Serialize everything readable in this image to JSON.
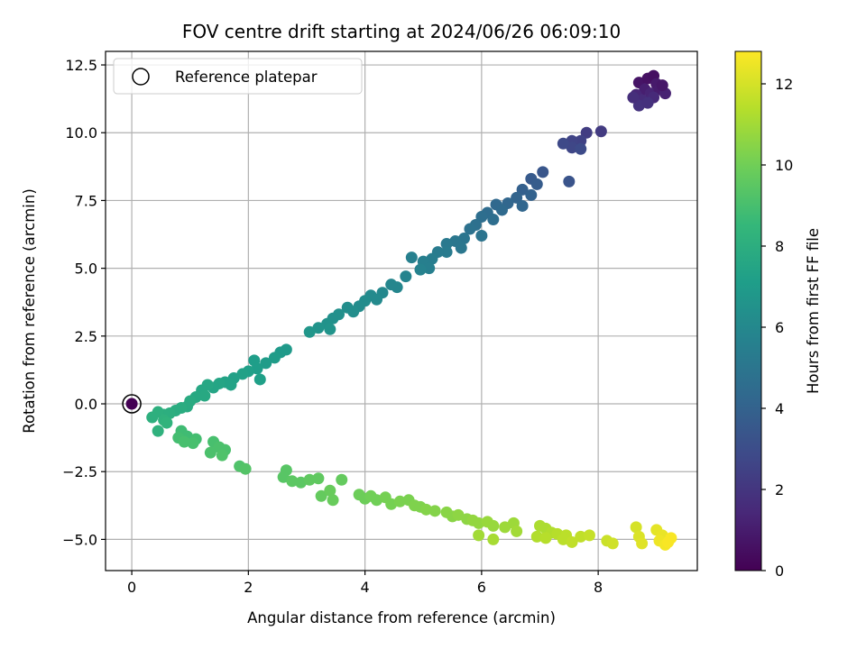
{
  "chart_data": {
    "type": "scatter",
    "title": "FOV centre drift starting at 2024/06/26 06:09:10",
    "xlabel": "Angular distance from reference (arcmin)",
    "ylabel": "Rotation from reference (arcmin)",
    "xlim": [
      -0.45,
      9.7
    ],
    "ylim": [
      -6.15,
      13.0
    ],
    "xticks": [
      0,
      2,
      4,
      6,
      8
    ],
    "yticks": [
      -5.0,
      -2.5,
      0.0,
      2.5,
      5.0,
      7.5,
      10.0,
      12.5
    ],
    "xtick_labels": [
      "0",
      "2",
      "4",
      "6",
      "8"
    ],
    "ytick_labels": [
      "−5.0",
      "−2.5",
      "0.0",
      "2.5",
      "5.0",
      "7.5",
      "10.0",
      "12.5"
    ],
    "grid": true,
    "legend": {
      "position": "top-left",
      "entries": [
        "Reference platepar"
      ]
    },
    "reference_point": {
      "x": 0,
      "y": 0,
      "hours": 0
    },
    "colorbar": {
      "label": "Hours from first FF file",
      "range": [
        0,
        12.8
      ],
      "ticks": [
        0,
        2,
        4,
        6,
        8,
        10,
        12
      ],
      "tick_labels": [
        "0",
        "2",
        "4",
        "6",
        "8",
        "10",
        "12"
      ],
      "colormap": "viridis",
      "colors": [
        "#440154",
        "#482878",
        "#3e4a89",
        "#31688e",
        "#26828e",
        "#1f9e89",
        "#35b779",
        "#6ece58",
        "#b5de2b",
        "#fde725"
      ]
    },
    "series": [
      {
        "points": [
          [
            8.7,
            11.85,
            0.7
          ],
          [
            8.85,
            12.0,
            0.6
          ],
          [
            8.95,
            12.1,
            0.5
          ],
          [
            9.0,
            11.8,
            0.9
          ],
          [
            8.8,
            11.6,
            1.1
          ],
          [
            8.65,
            11.4,
            1.4
          ],
          [
            8.9,
            11.45,
            1.3
          ],
          [
            9.05,
            11.6,
            1.0
          ],
          [
            9.15,
            11.45,
            1.2
          ],
          [
            8.75,
            11.2,
            1.6
          ],
          [
            8.95,
            11.3,
            1.5
          ],
          [
            8.7,
            11.0,
            1.9
          ],
          [
            8.85,
            11.1,
            1.8
          ],
          [
            8.6,
            11.3,
            1.7
          ],
          [
            9.1,
            11.75,
            0.8
          ],
          [
            8.05,
            10.05,
            2.2
          ],
          [
            7.8,
            10.0,
            2.3
          ],
          [
            7.7,
            9.7,
            2.5
          ],
          [
            7.55,
            9.7,
            2.6
          ],
          [
            7.55,
            9.45,
            2.7
          ],
          [
            7.4,
            9.6,
            2.8
          ],
          [
            7.7,
            9.4,
            2.9
          ],
          [
            7.5,
            8.2,
            3.3
          ],
          [
            7.05,
            8.55,
            3.4
          ],
          [
            6.85,
            8.3,
            3.6
          ],
          [
            6.95,
            8.1,
            3.7
          ],
          [
            6.7,
            7.9,
            3.9
          ],
          [
            6.85,
            7.7,
            4.0
          ],
          [
            6.6,
            7.6,
            4.1
          ],
          [
            6.45,
            7.4,
            4.2
          ],
          [
            6.7,
            7.3,
            4.2
          ],
          [
            6.25,
            7.35,
            4.3
          ],
          [
            6.35,
            7.15,
            4.4
          ],
          [
            6.1,
            7.05,
            4.5
          ],
          [
            6.2,
            6.8,
            4.6
          ],
          [
            6.0,
            6.9,
            4.6
          ],
          [
            5.9,
            6.6,
            4.7
          ],
          [
            5.8,
            6.45,
            4.8
          ],
          [
            6.0,
            6.2,
            4.9
          ],
          [
            5.7,
            6.1,
            5.0
          ],
          [
            5.55,
            6.0,
            5.1
          ],
          [
            5.65,
            5.75,
            5.1
          ],
          [
            5.4,
            5.9,
            5.2
          ],
          [
            5.4,
            5.6,
            5.3
          ],
          [
            5.25,
            5.6,
            5.3
          ],
          [
            5.15,
            5.35,
            5.4
          ],
          [
            5.0,
            5.25,
            5.5
          ],
          [
            5.1,
            5.0,
            5.5
          ],
          [
            4.8,
            5.4,
            5.6
          ],
          [
            4.95,
            4.95,
            5.7
          ],
          [
            4.7,
            4.7,
            5.8
          ],
          [
            4.55,
            4.3,
            5.9
          ],
          [
            4.45,
            4.4,
            5.9
          ],
          [
            4.3,
            4.1,
            6.0
          ],
          [
            4.1,
            4.0,
            6.1
          ],
          [
            4.2,
            3.85,
            6.1
          ],
          [
            4.0,
            3.8,
            6.2
          ],
          [
            3.9,
            3.6,
            6.2
          ],
          [
            3.8,
            3.4,
            6.3
          ],
          [
            3.7,
            3.55,
            6.3
          ],
          [
            3.55,
            3.3,
            6.4
          ],
          [
            3.45,
            3.15,
            6.4
          ],
          [
            3.35,
            2.95,
            6.5
          ],
          [
            3.4,
            2.75,
            6.6
          ],
          [
            3.2,
            2.8,
            6.6
          ],
          [
            3.05,
            2.65,
            6.7
          ],
          [
            2.65,
            2.0,
            6.9
          ],
          [
            2.55,
            1.9,
            6.9
          ],
          [
            2.45,
            1.7,
            7.0
          ],
          [
            2.3,
            1.5,
            7.0
          ],
          [
            2.1,
            1.6,
            7.1
          ],
          [
            2.15,
            1.3,
            7.1
          ],
          [
            2.0,
            1.2,
            7.2
          ],
          [
            2.2,
            0.9,
            7.2
          ],
          [
            1.9,
            1.1,
            7.3
          ],
          [
            1.75,
            0.95,
            7.3
          ],
          [
            1.6,
            0.8,
            7.4
          ],
          [
            1.7,
            0.7,
            7.4
          ],
          [
            1.5,
            0.75,
            7.5
          ],
          [
            1.4,
            0.6,
            7.5
          ],
          [
            1.3,
            0.7,
            7.6
          ],
          [
            1.2,
            0.5,
            7.6
          ],
          [
            1.25,
            0.3,
            7.7
          ],
          [
            1.1,
            0.25,
            7.7
          ],
          [
            1.0,
            0.1,
            7.8
          ],
          [
            0.95,
            -0.1,
            7.8
          ],
          [
            0.85,
            -0.15,
            7.9
          ],
          [
            0.75,
            -0.25,
            7.9
          ],
          [
            0.65,
            -0.35,
            8.0
          ],
          [
            0.55,
            -0.4,
            8.0
          ],
          [
            0.45,
            -0.3,
            8.1
          ],
          [
            0.35,
            -0.5,
            8.1
          ],
          [
            0.55,
            -0.6,
            8.2
          ],
          [
            0.45,
            -1.0,
            8.2
          ],
          [
            0.6,
            -0.7,
            8.3
          ],
          [
            0.85,
            -1.0,
            8.8
          ],
          [
            0.95,
            -1.2,
            8.8
          ],
          [
            0.8,
            -1.25,
            8.9
          ],
          [
            1.1,
            -1.3,
            8.9
          ],
          [
            0.9,
            -1.4,
            9.0
          ],
          [
            1.05,
            -1.45,
            9.0
          ],
          [
            1.4,
            -1.4,
            9.0
          ],
          [
            1.5,
            -1.6,
            9.1
          ],
          [
            1.35,
            -1.8,
            9.1
          ],
          [
            1.6,
            -1.7,
            9.1
          ],
          [
            1.55,
            -1.9,
            9.2
          ],
          [
            1.85,
            -2.3,
            9.2
          ],
          [
            1.95,
            -2.4,
            9.3
          ],
          [
            2.65,
            -2.45,
            9.4
          ],
          [
            2.6,
            -2.7,
            9.4
          ],
          [
            2.75,
            -2.85,
            9.5
          ],
          [
            2.9,
            -2.9,
            9.5
          ],
          [
            3.05,
            -2.8,
            9.6
          ],
          [
            3.2,
            -2.75,
            9.6
          ],
          [
            3.25,
            -3.4,
            9.7
          ],
          [
            3.6,
            -2.8,
            9.7
          ],
          [
            3.4,
            -3.2,
            9.8
          ],
          [
            3.45,
            -3.55,
            9.8
          ],
          [
            3.9,
            -3.35,
            9.9
          ],
          [
            4.0,
            -3.5,
            9.9
          ],
          [
            4.1,
            -3.4,
            10.0
          ],
          [
            4.2,
            -3.55,
            10.0
          ],
          [
            4.35,
            -3.45,
            10.1
          ],
          [
            4.45,
            -3.7,
            10.1
          ],
          [
            4.6,
            -3.6,
            10.2
          ],
          [
            4.75,
            -3.55,
            10.2
          ],
          [
            4.85,
            -3.75,
            10.3
          ],
          [
            4.95,
            -3.8,
            10.3
          ],
          [
            5.05,
            -3.9,
            10.4
          ],
          [
            5.2,
            -3.95,
            10.4
          ],
          [
            5.4,
            -4.0,
            10.5
          ],
          [
            5.5,
            -4.15,
            10.5
          ],
          [
            5.6,
            -4.1,
            10.6
          ],
          [
            5.75,
            -4.25,
            10.6
          ],
          [
            5.85,
            -4.3,
            10.7
          ],
          [
            5.95,
            -4.4,
            10.7
          ],
          [
            6.1,
            -4.35,
            10.8
          ],
          [
            6.2,
            -4.5,
            10.8
          ],
          [
            6.4,
            -4.55,
            10.9
          ],
          [
            6.55,
            -4.4,
            10.9
          ],
          [
            6.6,
            -4.7,
            11.0
          ],
          [
            5.95,
            -4.85,
            11.0
          ],
          [
            6.2,
            -5.0,
            11.1
          ],
          [
            7.0,
            -4.5,
            11.2
          ],
          [
            7.1,
            -4.6,
            11.2
          ],
          [
            7.2,
            -4.75,
            11.3
          ],
          [
            6.95,
            -4.9,
            11.3
          ],
          [
            7.1,
            -4.95,
            11.4
          ],
          [
            7.3,
            -4.8,
            11.4
          ],
          [
            7.45,
            -4.85,
            11.5
          ],
          [
            7.4,
            -5.0,
            11.5
          ],
          [
            7.55,
            -5.1,
            11.6
          ],
          [
            7.7,
            -4.9,
            11.6
          ],
          [
            7.85,
            -4.85,
            11.7
          ],
          [
            8.15,
            -5.05,
            11.8
          ],
          [
            8.25,
            -5.15,
            11.9
          ],
          [
            8.65,
            -4.55,
            12.0
          ],
          [
            8.7,
            -4.9,
            12.1
          ],
          [
            8.75,
            -5.15,
            12.2
          ],
          [
            9.0,
            -4.65,
            12.3
          ],
          [
            9.1,
            -4.85,
            12.4
          ],
          [
            9.05,
            -5.05,
            12.5
          ],
          [
            9.15,
            -5.2,
            12.6
          ],
          [
            9.25,
            -4.95,
            12.7
          ],
          [
            9.2,
            -5.1,
            12.7
          ]
        ]
      }
    ]
  }
}
